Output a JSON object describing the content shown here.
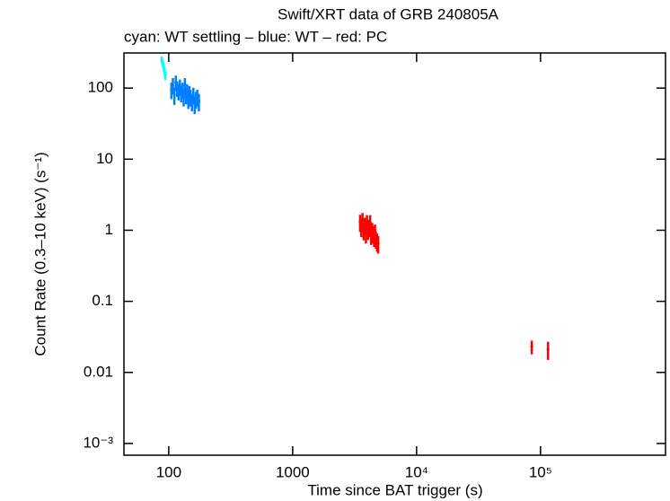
{
  "chart_data": {
    "type": "scatter",
    "title": "Swift/XRT data of GRB 240805A",
    "subtitle": "cyan: WT settling – blue: WT – red: PC",
    "xlabel": "Time since BAT trigger (s)",
    "ylabel": "Count Rate (0.3–10 keV) (s⁻¹)",
    "xscale": "log",
    "yscale": "log",
    "xlim": [
      43.5,
      1020000
    ],
    "ylim": [
      0.000684,
      312
    ],
    "xticks": [
      100,
      1000,
      {
        "value": 10000,
        "label": "10⁴"
      },
      {
        "value": 100000,
        "label": "10⁵"
      }
    ],
    "yticks": [
      {
        "value": 0.001,
        "label": "10⁻³"
      },
      0.01,
      0.1,
      1,
      10,
      100
    ],
    "series": [
      {
        "color": "#00ffff",
        "x": [
          88,
          89.5,
          91,
          92.5,
          94
        ],
        "values": [
          250,
          225,
          200,
          175,
          150
        ],
        "yerr": [
          30,
          28,
          25,
          22,
          20
        ]
      },
      {
        "color": "#0080ff",
        "x": [
          105,
          108,
          111,
          114,
          117,
          120,
          123,
          126,
          129,
          132,
          135,
          138,
          141,
          144,
          147,
          150,
          154,
          158,
          162,
          166,
          170,
          175
        ],
        "values": [
          95,
          110,
          80,
          120,
          100,
          90,
          105,
          85,
          95,
          75,
          110,
          80,
          90,
          70,
          85,
          75,
          65,
          80,
          60,
          70,
          75,
          65
        ],
        "yerr": [
          25,
          28,
          22,
          30,
          25,
          23,
          27,
          22,
          24,
          20,
          28,
          21,
          23,
          19,
          22,
          20,
          18,
          21,
          17,
          19,
          20,
          18
        ]
      },
      {
        "color": "#ff0000",
        "x": [
          3500,
          3580,
          3660,
          3740,
          3820,
          3900,
          3980,
          4060,
          4140,
          4220,
          4300,
          4380,
          4460,
          4540,
          4620,
          4700,
          4800,
          4900,
          85000,
          115000
        ],
        "values": [
          1.3,
          1.1,
          1.4,
          1.0,
          1.2,
          0.9,
          1.3,
          1.0,
          1.1,
          1.3,
          0.85,
          1.0,
          0.9,
          0.8,
          0.95,
          0.75,
          0.7,
          0.65,
          0.023,
          0.021
        ],
        "yerr": [
          0.35,
          0.3,
          0.35,
          0.28,
          0.3,
          0.25,
          0.33,
          0.27,
          0.3,
          0.33,
          0.23,
          0.27,
          0.25,
          0.22,
          0.25,
          0.2,
          0.2,
          0.18,
          0.005,
          0.006
        ]
      }
    ]
  }
}
